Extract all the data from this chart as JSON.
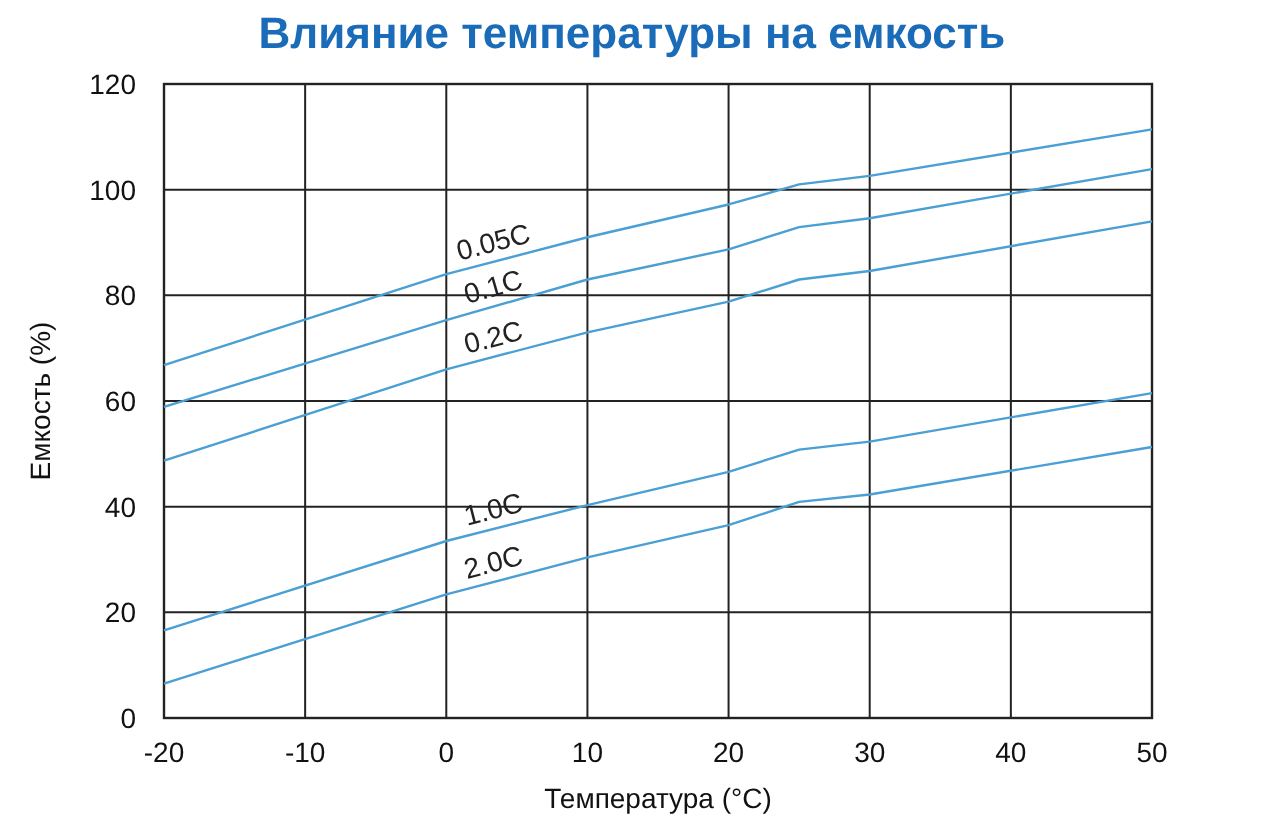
{
  "chart_data": {
    "type": "line",
    "title": "Влияние температуры на емкость",
    "xlabel": "Температура (°C)",
    "ylabel": "Емкость (%)",
    "x": [
      -20,
      0,
      10,
      20,
      25,
      30,
      50
    ],
    "series": [
      {
        "name": "0.05C",
        "color": "#4a9fd4",
        "values": [
          66.8,
          84,
          91,
          97.2,
          101,
          102.6,
          111.4
        ]
      },
      {
        "name": "0.1C",
        "color": "#4a9fd4",
        "values": [
          58.9,
          75.3,
          83,
          88.7,
          92.9,
          94.6,
          103.9
        ]
      },
      {
        "name": "0.2C",
        "color": "#4a9fd4",
        "values": [
          48.7,
          66,
          73,
          78.8,
          83,
          84.6,
          94
        ]
      },
      {
        "name": "1.0C",
        "color": "#4a9fd4",
        "values": [
          16.6,
          33.5,
          40.3,
          46.6,
          50.8,
          52.3,
          61.5
        ]
      },
      {
        "name": "2.0C",
        "color": "#4a9fd4",
        "values": [
          6.5,
          23.4,
          30.4,
          36.5,
          40.9,
          42.3,
          51.3
        ]
      }
    ],
    "xlim": [
      -20,
      50
    ],
    "xticks": [
      -20,
      -10,
      0,
      10,
      20,
      30,
      40,
      50
    ],
    "ylim": [
      0,
      120
    ],
    "yticks": [
      0,
      20,
      40,
      60,
      80,
      100,
      120
    ],
    "grid": true,
    "marker": "none",
    "line_style": "solid"
  }
}
